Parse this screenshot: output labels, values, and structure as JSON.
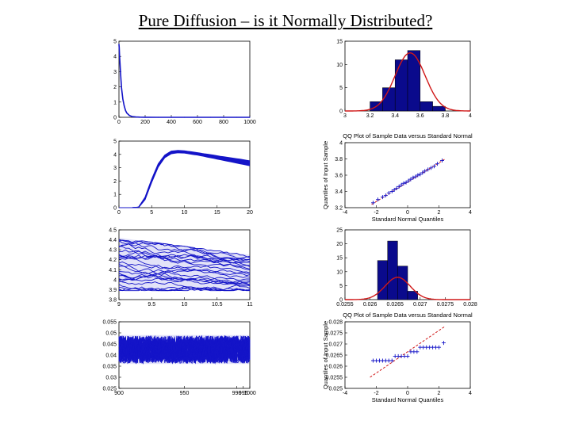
{
  "title": "Pure Diffusion – is it Normally Distributed?",
  "colors": {
    "data": "#1414c8",
    "fit": "#d01818",
    "bar": "#0a0a8c",
    "axis": "#000000"
  },
  "chart_data": [
    {
      "id": "p1",
      "type": "line",
      "xlim": [
        0,
        1000
      ],
      "ylim": [
        0,
        5
      ],
      "xticks": [
        "0",
        "200",
        "400",
        "600",
        "800",
        "1000"
      ],
      "yticks": [
        "0",
        "1",
        "2",
        "3",
        "4",
        "5"
      ],
      "series": [
        {
          "x": [
            0,
            2,
            5,
            10,
            15,
            20,
            30,
            40,
            50,
            60,
            80,
            100,
            130,
            160,
            200,
            300,
            400,
            500,
            600,
            700,
            800,
            900,
            1000
          ],
          "y": [
            4.8,
            4.6,
            4.0,
            3.2,
            2.5,
            1.9,
            1.2,
            0.75,
            0.45,
            0.28,
            0.12,
            0.05,
            0.02,
            0.01,
            0.005,
            0,
            0,
            0,
            0,
            0,
            0,
            0,
            0
          ]
        }
      ]
    },
    {
      "id": "p2",
      "type": "line",
      "xlim": [
        0,
        20
      ],
      "ylim": [
        0,
        5
      ],
      "xticks": [
        "0",
        "5",
        "10",
        "15",
        "20"
      ],
      "yticks": [
        "0",
        "1",
        "2",
        "3",
        "4",
        "5"
      ],
      "band": {
        "x": [
          0,
          1,
          2,
          3,
          4,
          5,
          6,
          7,
          8,
          9,
          10,
          11,
          12,
          13,
          14,
          15,
          16,
          17,
          18,
          19,
          20
        ],
        "lower": [
          0,
          0,
          0,
          0.02,
          0.6,
          1.9,
          3.05,
          3.75,
          4.05,
          4.12,
          4.1,
          4.02,
          3.95,
          3.85,
          3.75,
          3.65,
          3.55,
          3.45,
          3.35,
          3.25,
          3.15
        ],
        "upper": [
          0,
          0,
          0,
          0.05,
          0.8,
          2.15,
          3.3,
          3.95,
          4.25,
          4.3,
          4.27,
          4.2,
          4.13,
          4.05,
          3.98,
          3.9,
          3.82,
          3.75,
          3.68,
          3.6,
          3.52
        ]
      }
    },
    {
      "id": "p3",
      "type": "line",
      "xlim": [
        9,
        11
      ],
      "ylim": [
        3.8,
        4.5
      ],
      "xticks": [
        "9",
        "9.5",
        "10",
        "10.5",
        "11"
      ],
      "yticks": [
        "3.8",
        "3.9",
        "4",
        "4.1",
        "4.2",
        "4.3",
        "4.4",
        "4.5"
      ],
      "band": {
        "x": [
          9,
          11
        ],
        "lower": [
          3.89,
          3.89
        ],
        "upper": [
          4.42,
          4.25
        ]
      }
    },
    {
      "id": "p4",
      "type": "line",
      "xlim": [
        900,
        1000
      ],
      "ylim": [
        0.025,
        0.055
      ],
      "xticks": [
        "900",
        "950",
        "990",
        "995",
        "1000"
      ],
      "yticks": [
        "0.025",
        "0.03",
        "0.035",
        "0.04",
        "0.045",
        "0.05",
        "0.055"
      ],
      "band": {
        "x": [
          900,
          1000
        ],
        "lower": [
          0.036,
          0.036
        ],
        "upper": [
          0.049,
          0.049
        ]
      }
    },
    {
      "id": "h1",
      "type": "bar",
      "xlim": [
        3,
        4
      ],
      "ylim": [
        0,
        15
      ],
      "xticks": [
        "3",
        "3.2",
        "3.4",
        "3.6",
        "3.8",
        "4"
      ],
      "yticks": [
        "0",
        "5",
        "10",
        "15"
      ],
      "bins": [
        3.25,
        3.35,
        3.45,
        3.55,
        3.65,
        3.75
      ],
      "values": [
        2,
        5,
        11,
        13,
        2,
        1
      ],
      "fit": {
        "mu": 3.52,
        "sigma": 0.12,
        "peak": 12.5
      }
    },
    {
      "id": "q1",
      "type": "scatter",
      "title": "QQ Plot of Sample Data versus Standard Normal",
      "xlabel": "Standard Normal Quantiles",
      "ylabel": "Quantiles of Input Sample",
      "xlim": [
        -4,
        4
      ],
      "ylim": [
        3.2,
        4
      ],
      "xticks": [
        "-4",
        "-2",
        "0",
        "2",
        "4"
      ],
      "yticks": [
        "3.2",
        "3.4",
        "3.6",
        "3.8",
        "4"
      ],
      "x": [
        -2.2,
        -1.9,
        -1.6,
        -1.4,
        -1.2,
        -1.0,
        -0.85,
        -0.7,
        -0.55,
        -0.4,
        -0.25,
        -0.1,
        0.05,
        0.2,
        0.35,
        0.5,
        0.65,
        0.8,
        0.95,
        1.1,
        1.3,
        1.5,
        1.7,
        1.9,
        2.2
      ],
      "y": [
        3.26,
        3.3,
        3.33,
        3.35,
        3.38,
        3.4,
        3.42,
        3.44,
        3.46,
        3.48,
        3.5,
        3.51,
        3.53,
        3.55,
        3.57,
        3.58,
        3.6,
        3.61,
        3.63,
        3.65,
        3.67,
        3.69,
        3.71,
        3.74,
        3.78
      ],
      "ref": {
        "x": [
          -2.3,
          2.4
        ],
        "y": [
          3.24,
          3.8
        ]
      }
    },
    {
      "id": "h2",
      "type": "bar",
      "xlim": [
        0.0255,
        0.028
      ],
      "ylim": [
        0,
        25
      ],
      "xticks": [
        "0.0255",
        "0.026",
        "0.0265",
        "0.027",
        "0.0275",
        "0.028"
      ],
      "yticks": [
        "0",
        "5",
        "10",
        "15",
        "20",
        "25"
      ],
      "bins": [
        0.02625,
        0.02645,
        0.02665,
        0.02685
      ],
      "values": [
        14,
        21,
        12,
        3
      ],
      "fit": {
        "mu": 0.02655,
        "sigma": 0.00025,
        "peak": 8
      }
    },
    {
      "id": "q2",
      "type": "scatter",
      "title": "QQ Plot of Sample Data versus Standard Normal",
      "xlabel": "Standard Normal Quantiles",
      "ylabel": "Quantiles of Input Sample",
      "xlim": [
        -4,
        4
      ],
      "ylim": [
        0.025,
        0.028
      ],
      "xticks": [
        "-4",
        "-2",
        "0",
        "2",
        "4"
      ],
      "yticks": [
        "0.025",
        "0.0255",
        "0.026",
        "0.0265",
        "0.027",
        "0.0275",
        "0.028"
      ],
      "x": [
        -2.2,
        -2.0,
        -1.8,
        -1.6,
        -1.4,
        -1.2,
        -1.0,
        -0.8,
        -0.6,
        -0.4,
        -0.2,
        0.0,
        0.2,
        0.4,
        0.6,
        0.8,
        1.0,
        1.2,
        1.4,
        1.6,
        1.8,
        2.0,
        2.3
      ],
      "y": [
        0.02625,
        0.02625,
        0.02625,
        0.02625,
        0.02625,
        0.02625,
        0.02625,
        0.02645,
        0.02645,
        0.02645,
        0.02645,
        0.02645,
        0.02665,
        0.02665,
        0.02665,
        0.02685,
        0.02685,
        0.02685,
        0.02685,
        0.02685,
        0.02685,
        0.02685,
        0.02705
      ],
      "ref": {
        "x": [
          -2.4,
          2.4
        ],
        "y": [
          0.0255,
          0.0278
        ]
      }
    }
  ]
}
